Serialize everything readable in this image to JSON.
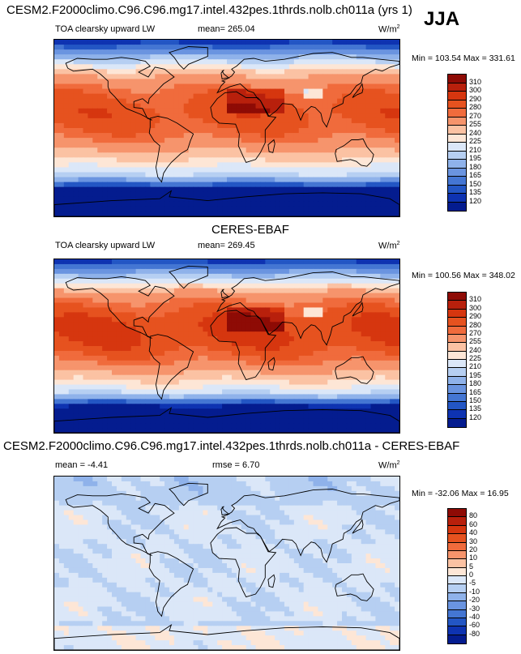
{
  "season": "JJA",
  "chart_data": [
    {
      "type": "heatmap",
      "title": "CESM2.F2000climo.C96.C96.mg17.intel.432pes.1thrds.nolb.ch011a (yrs 1)",
      "variable": "TOA clearsky upward LW",
      "mean_label": "mean= 265.04",
      "units_base": "W/m",
      "units_exp": "2",
      "minmax": "Min = 103.54 Max = 331.61",
      "levels": [
        "310",
        "300",
        "290",
        "280",
        "270",
        "255",
        "240",
        "225",
        "210",
        "195",
        "180",
        "165",
        "150",
        "135",
        "120"
      ],
      "colors": [
        "#8e0b05",
        "#b8200c",
        "#d6360f",
        "#e6521f",
        "#f06b3c",
        "#f6946c",
        "#fbc2a3",
        "#fde6d6",
        "#dbe7f8",
        "#b6cff2",
        "#8fb2ea",
        "#6a94e0",
        "#4476d3",
        "#2356c4",
        "#0e33b1",
        "#041c8f"
      ],
      "x_range": [
        -180,
        180
      ],
      "y_range": [
        -90,
        90
      ]
    },
    {
      "type": "heatmap",
      "title": "CERES-EBAF",
      "variable": "TOA clearsky upward LW",
      "mean_label": "mean= 269.45",
      "units_base": "W/m",
      "units_exp": "2",
      "minmax": "Min = 100.56 Max = 348.02",
      "levels": [
        "310",
        "300",
        "290",
        "280",
        "270",
        "255",
        "240",
        "225",
        "210",
        "195",
        "180",
        "165",
        "150",
        "135",
        "120"
      ],
      "colors": [
        "#8e0b05",
        "#b8200c",
        "#d6360f",
        "#e6521f",
        "#f06b3c",
        "#f6946c",
        "#fbc2a3",
        "#fde6d6",
        "#dbe7f8",
        "#b6cff2",
        "#8fb2ea",
        "#6a94e0",
        "#4476d3",
        "#2356c4",
        "#0e33b1",
        "#041c8f"
      ],
      "x_range": [
        -180,
        180
      ],
      "y_range": [
        -90,
        90
      ]
    },
    {
      "type": "heatmap",
      "title": "CESM2.F2000climo.C96.C96.mg17.intel.432pes.1thrds.nolb.ch011a - CERES-EBAF",
      "mean_label": "mean =  -4.41",
      "rmse_label": "rmse =   6.70",
      "units_base": "W/m",
      "units_exp": "2",
      "minmax": "Min = -32.06 Max =  16.95",
      "levels": [
        "80",
        "60",
        "40",
        "30",
        "20",
        "10",
        "5",
        "0",
        "-5",
        "-10",
        "-20",
        "-30",
        "-40",
        "-60",
        "-80"
      ],
      "colors": [
        "#8e0b05",
        "#b8200c",
        "#d6360f",
        "#e6521f",
        "#f06b3c",
        "#f6946c",
        "#fbc2a3",
        "#fde6d6",
        "#dbe7f8",
        "#b6cff2",
        "#8fb2ea",
        "#6a94e0",
        "#4476d3",
        "#2356c4",
        "#0e33b1",
        "#041c8f"
      ],
      "x_range": [
        -180,
        180
      ],
      "y_range": [
        -90,
        90
      ]
    }
  ]
}
